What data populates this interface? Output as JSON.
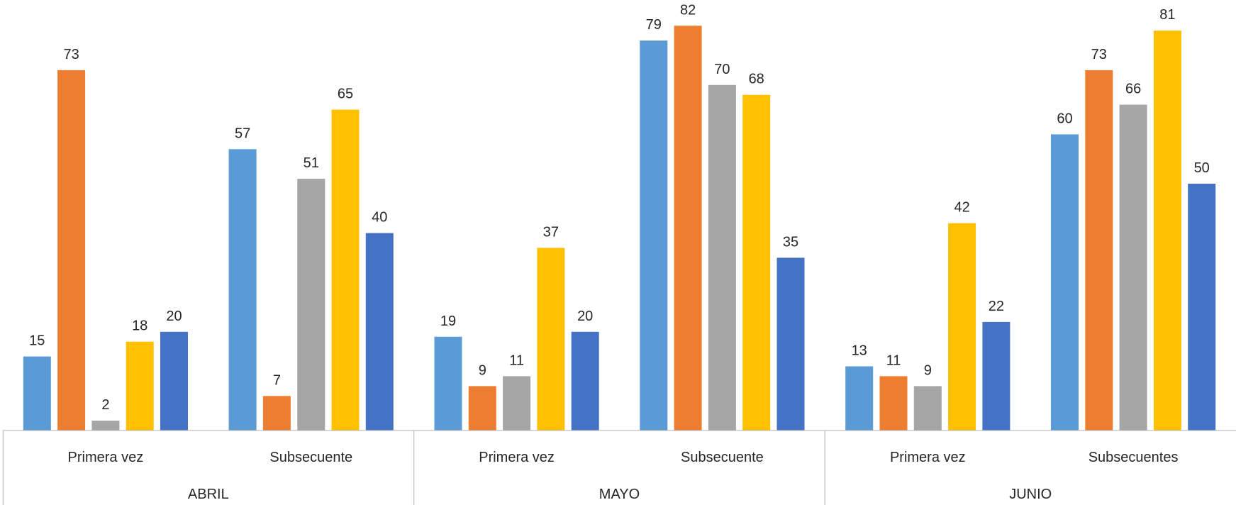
{
  "chart_data": {
    "type": "bar",
    "groups": [
      {
        "label": "ABRIL",
        "categories": [
          "Primera vez",
          "Subsecuente"
        ]
      },
      {
        "label": "MAYO",
        "categories": [
          "Primera vez",
          "Subsecuente"
        ]
      },
      {
        "label": "JUNIO",
        "categories": [
          "Primera vez",
          "Subsecuentes"
        ]
      }
    ],
    "series": [
      {
        "color": "#5B9BD5",
        "values": [
          15,
          57,
          19,
          79,
          13,
          60
        ]
      },
      {
        "color": "#ED7D31",
        "values": [
          73,
          7,
          9,
          82,
          11,
          73
        ]
      },
      {
        "color": "#A5A5A5",
        "values": [
          2,
          51,
          11,
          70,
          9,
          66
        ]
      },
      {
        "color": "#FFC000",
        "values": [
          18,
          65,
          37,
          68,
          42,
          81
        ]
      },
      {
        "color": "#4472C4",
        "values": [
          20,
          40,
          20,
          35,
          22,
          50
        ]
      }
    ],
    "data_labels": true,
    "legend": "none",
    "grid": false,
    "ylim": [
      0,
      86
    ]
  }
}
